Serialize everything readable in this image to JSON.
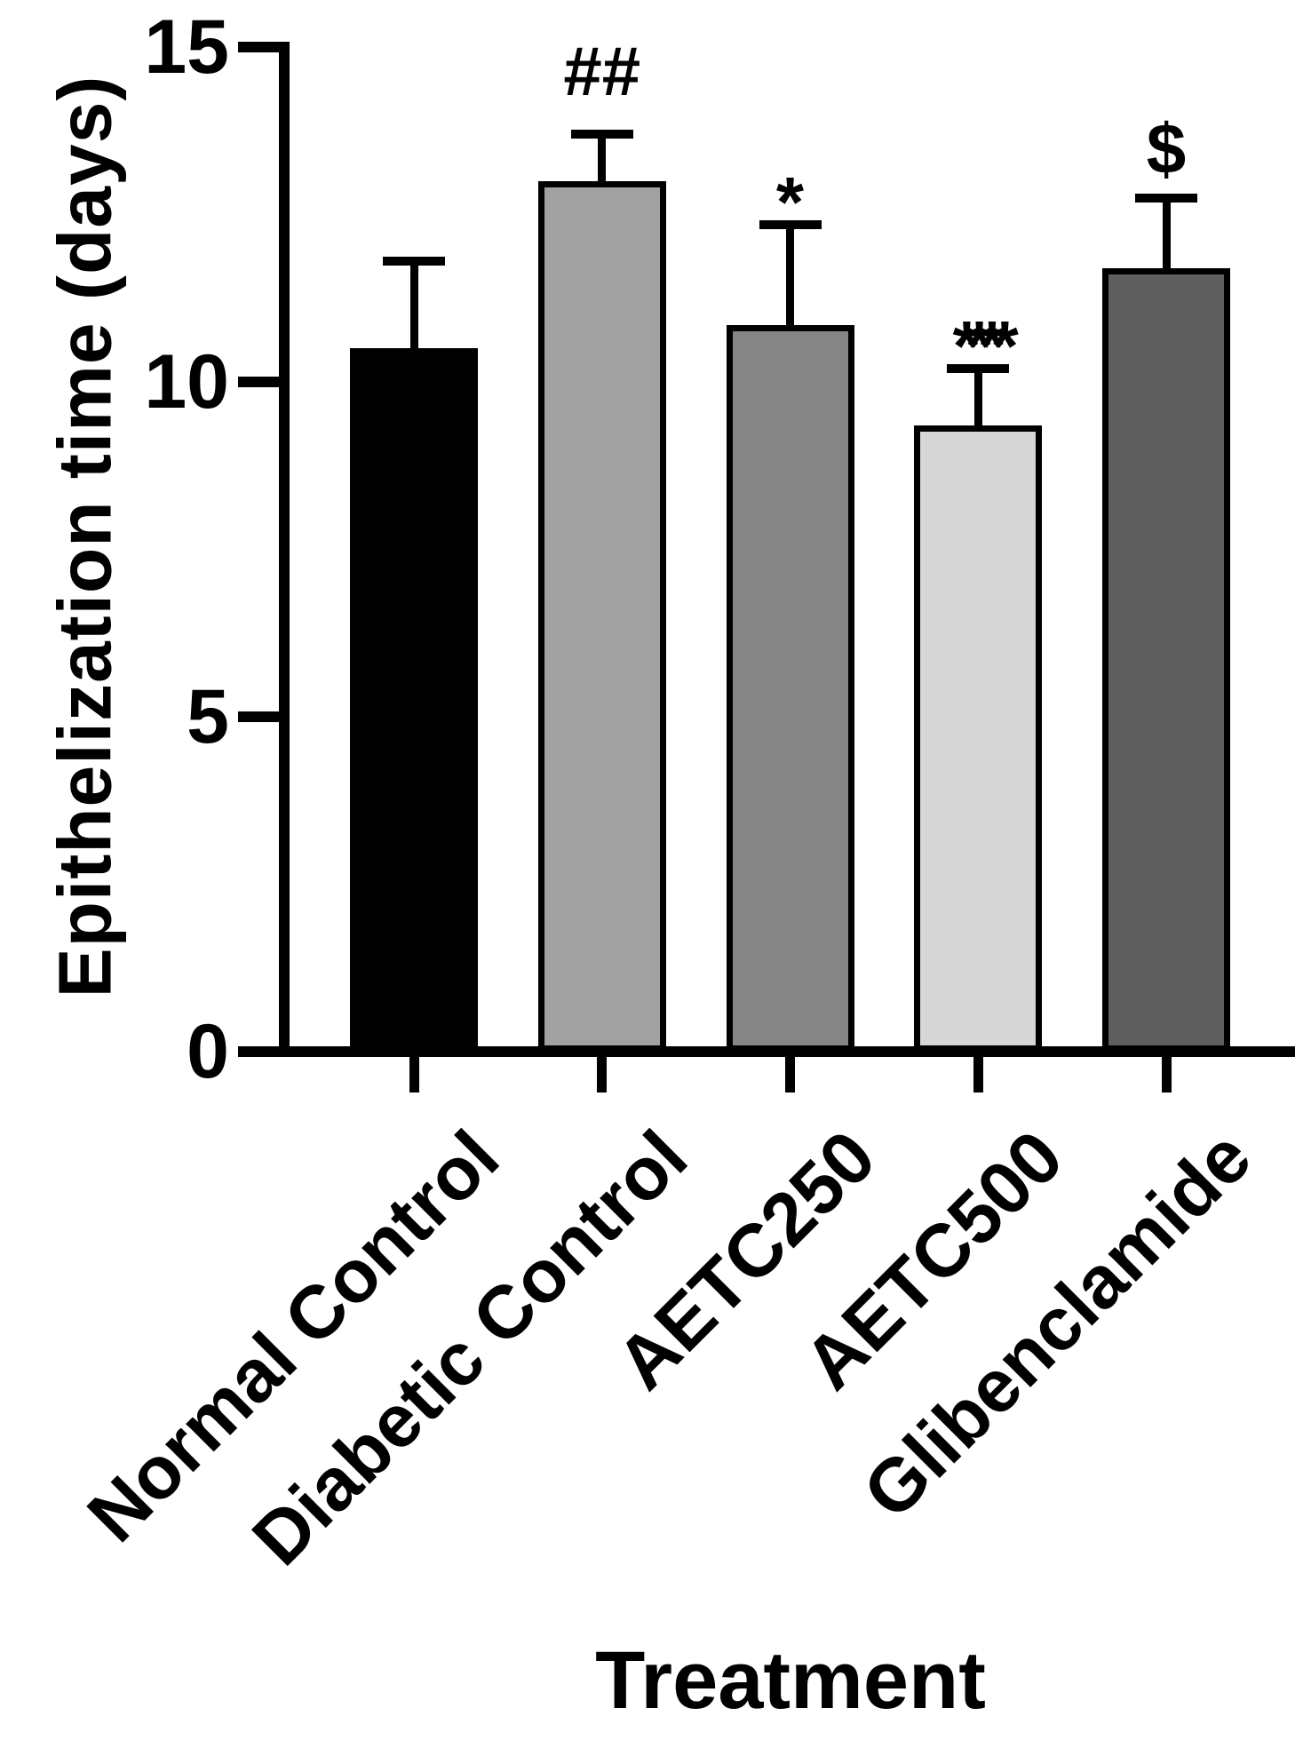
{
  "figure": {
    "background": "#ffffff"
  },
  "chart_data": {
    "type": "bar",
    "title": "",
    "xlabel": "Treatment",
    "ylabel": "Epithelization time (days)",
    "categories": [
      "Normal Control",
      "Diabetic Control",
      "AETC250",
      "AETC500",
      "Glibenclamide"
    ],
    "series": [
      {
        "name": "Epithelization time (days)",
        "values": [
          10.5,
          13.0,
          10.85,
          9.35,
          11.7
        ],
        "errors_sd_upper": [
          1.3,
          0.7,
          1.5,
          0.85,
          1.05
        ]
      }
    ],
    "annotations_by_category": [
      "",
      "##",
      "*",
      "****",
      "$"
    ],
    "bar_colors": [
      "#000000",
      "#a1a1a1",
      "#858585",
      "#d6d6d6",
      "#5f5f5f"
    ],
    "bar_border_color": "#000000",
    "error_bar_color": "#000000",
    "axis_color": "#000000",
    "text_color": "#000000",
    "y_ticks": [
      0,
      5,
      10,
      15
    ],
    "ylim": [
      0,
      15
    ],
    "grid": false,
    "legend": "none",
    "error_bars": "mean + SD (upper only, capped)",
    "x_tick_label_rotation_deg": -45
  }
}
